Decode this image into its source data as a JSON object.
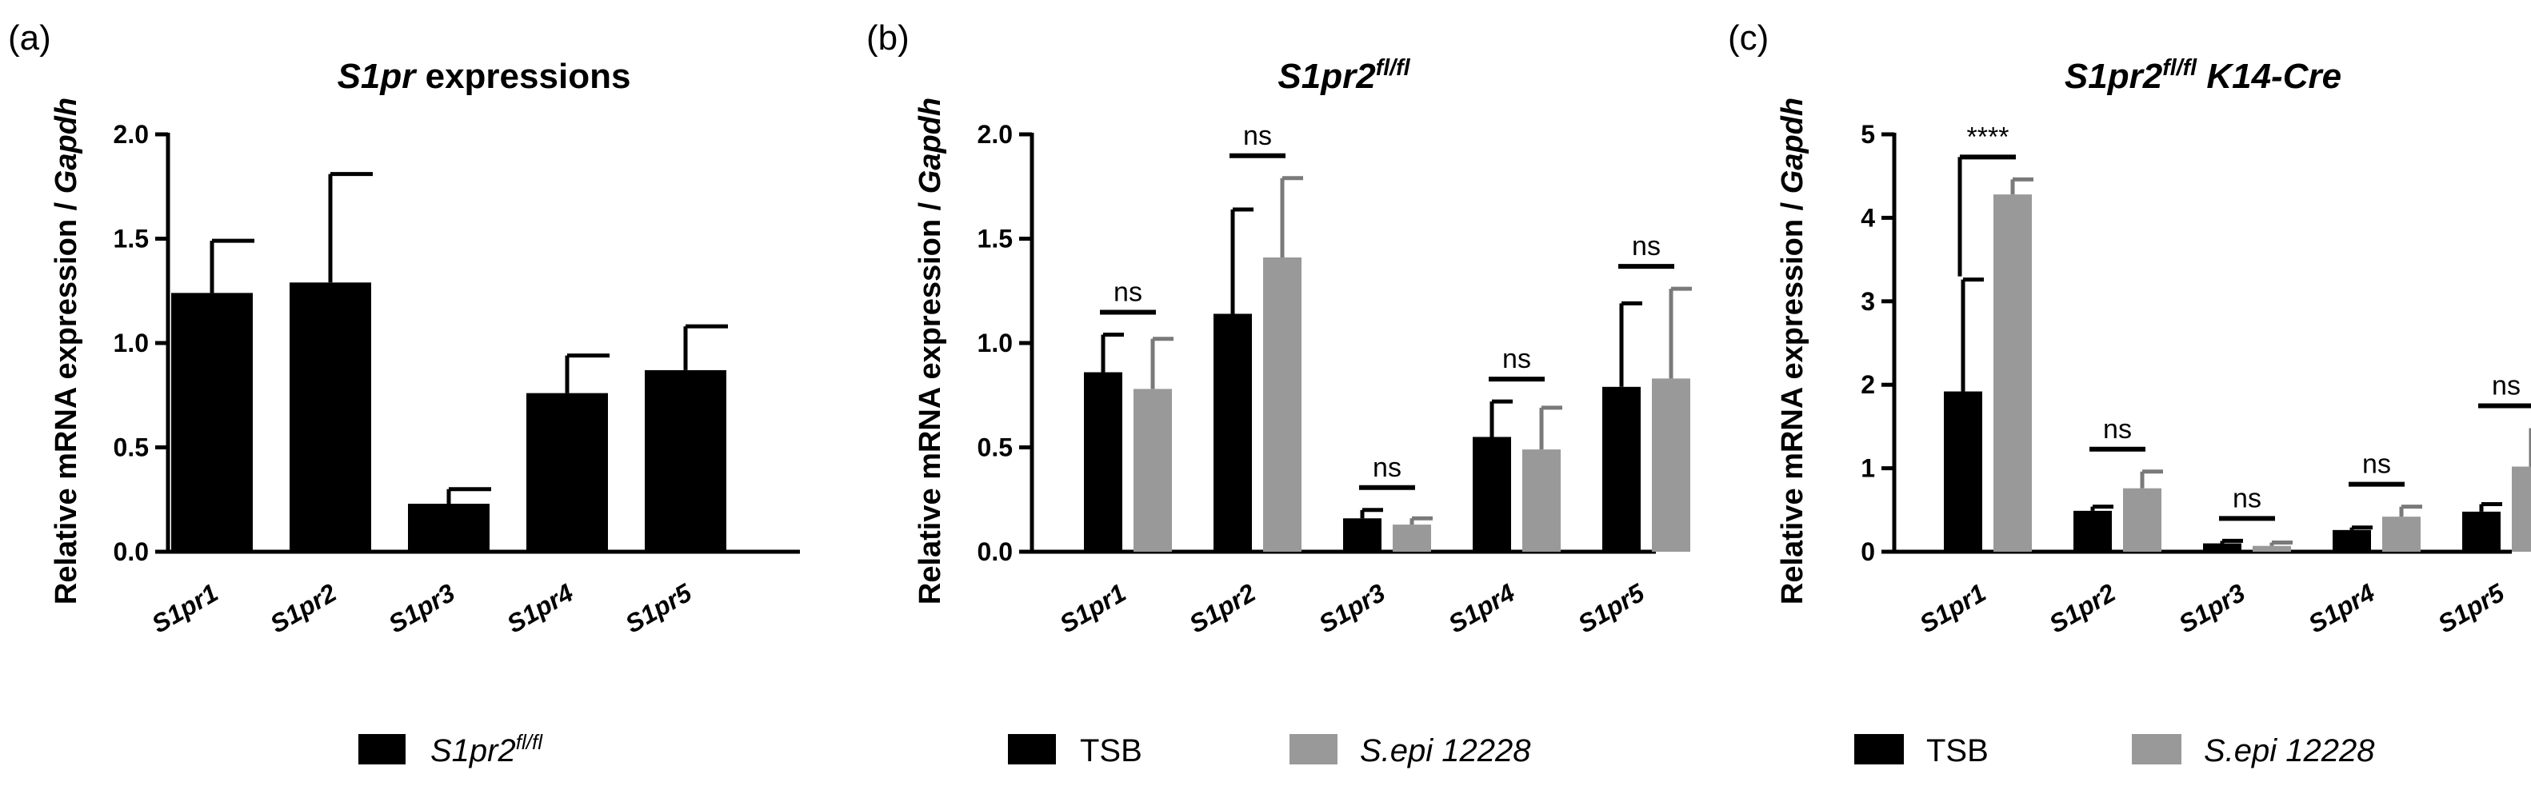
{
  "chart_data": [
    {
      "type": "bar",
      "panel_label": "(a)",
      "title": "S1pr expressions",
      "title_parts": [
        {
          "text": "S1pr",
          "italic": true
        },
        {
          "text": " expressions",
          "italic": false
        }
      ],
      "ylabel": "Relative mRNA expression / Gapdh",
      "ylabel_parts": [
        {
          "text": "Relative mRNA expression / ",
          "italic": false
        },
        {
          "text": "Gapdh",
          "italic": true
        }
      ],
      "xlabel": "",
      "ylim": [
        0,
        2.0
      ],
      "yticks": [
        "0.0",
        "0.5",
        "1.0",
        "1.5",
        "2.0"
      ],
      "categories": [
        "S1pr1",
        "S1pr2",
        "S1pr3",
        "S1pr4",
        "S1pr5"
      ],
      "series": [
        {
          "name": "S1pr2fl/fl",
          "color": "#000000",
          "values": [
            1.24,
            1.29,
            0.23,
            0.76,
            0.87
          ],
          "errors": [
            0.25,
            0.52,
            0.07,
            0.18,
            0.21
          ]
        }
      ],
      "significance": [],
      "legend": [
        {
          "label": "S1pr2",
          "sup": "fl/fl",
          "italic": true,
          "color": "#000000"
        }
      ]
    },
    {
      "type": "bar",
      "panel_label": "(b)",
      "title": "S1pr2fl/fl",
      "title_parts": [
        {
          "text": "S1pr2",
          "italic": true
        },
        {
          "text": "fl/fl",
          "italic": true,
          "sup": true
        }
      ],
      "ylabel": "Relative mRNA expression / Gapdh",
      "ylabel_parts": [
        {
          "text": "Relative mRNA expression / ",
          "italic": false
        },
        {
          "text": "Gapdh",
          "italic": true
        }
      ],
      "xlabel": "",
      "ylim": [
        0,
        2.0
      ],
      "yticks": [
        "0.0",
        "0.5",
        "1.0",
        "1.5",
        "2.0"
      ],
      "categories": [
        "S1pr1",
        "S1pr2",
        "S1pr3",
        "S1pr4",
        "S1pr5"
      ],
      "series": [
        {
          "name": "TSB",
          "color": "#000000",
          "values": [
            0.86,
            1.14,
            0.16,
            0.55,
            0.79
          ],
          "errors": [
            0.18,
            0.5,
            0.04,
            0.17,
            0.4
          ]
        },
        {
          "name": "S.epi 12228",
          "color": "#999999",
          "values": [
            0.78,
            1.41,
            0.13,
            0.49,
            0.83
          ],
          "errors": [
            0.24,
            0.38,
            0.03,
            0.2,
            0.43
          ]
        }
      ],
      "significance": [
        "ns",
        "ns",
        "ns",
        "ns",
        "ns"
      ],
      "legend": [
        {
          "label": "TSB",
          "italic": false,
          "color": "#000000"
        },
        {
          "label": "S.epi 12228",
          "italic": true,
          "color": "#999999"
        }
      ]
    },
    {
      "type": "bar",
      "panel_label": "(c)",
      "title": "S1pr2fl/fl K14-Cre",
      "title_parts": [
        {
          "text": "S1pr2",
          "italic": true
        },
        {
          "text": "fl/fl",
          "italic": true,
          "sup": true
        },
        {
          "text": " K14-Cre",
          "italic": true
        }
      ],
      "ylabel": "Relative mRNA expression / Gapdh",
      "ylabel_parts": [
        {
          "text": "Relative mRNA expression / ",
          "italic": false
        },
        {
          "text": "Gapdh",
          "italic": true
        }
      ],
      "xlabel": "",
      "ylim": [
        0,
        5
      ],
      "yticks": [
        "0",
        "1",
        "2",
        "3",
        "4",
        "5"
      ],
      "categories": [
        "S1pr1",
        "S1pr2",
        "S1pr3",
        "S1pr4",
        "S1pr5"
      ],
      "series": [
        {
          "name": "TSB",
          "color": "#000000",
          "values": [
            1.92,
            0.49,
            0.1,
            0.26,
            0.48
          ],
          "errors": [
            1.34,
            0.05,
            0.03,
            0.03,
            0.09
          ]
        },
        {
          "name": "S.epi 12228",
          "color": "#999999",
          "values": [
            4.28,
            0.76,
            0.07,
            0.42,
            1.02
          ],
          "errors": [
            0.18,
            0.2,
            0.04,
            0.12,
            0.46
          ]
        }
      ],
      "significance": [
        "****",
        "ns",
        "ns",
        "ns",
        "ns"
      ],
      "legend": [
        {
          "label": "TSB",
          "italic": false,
          "color": "#000000"
        },
        {
          "label": "S.epi 12228",
          "italic": true,
          "color": "#999999"
        }
      ]
    }
  ]
}
